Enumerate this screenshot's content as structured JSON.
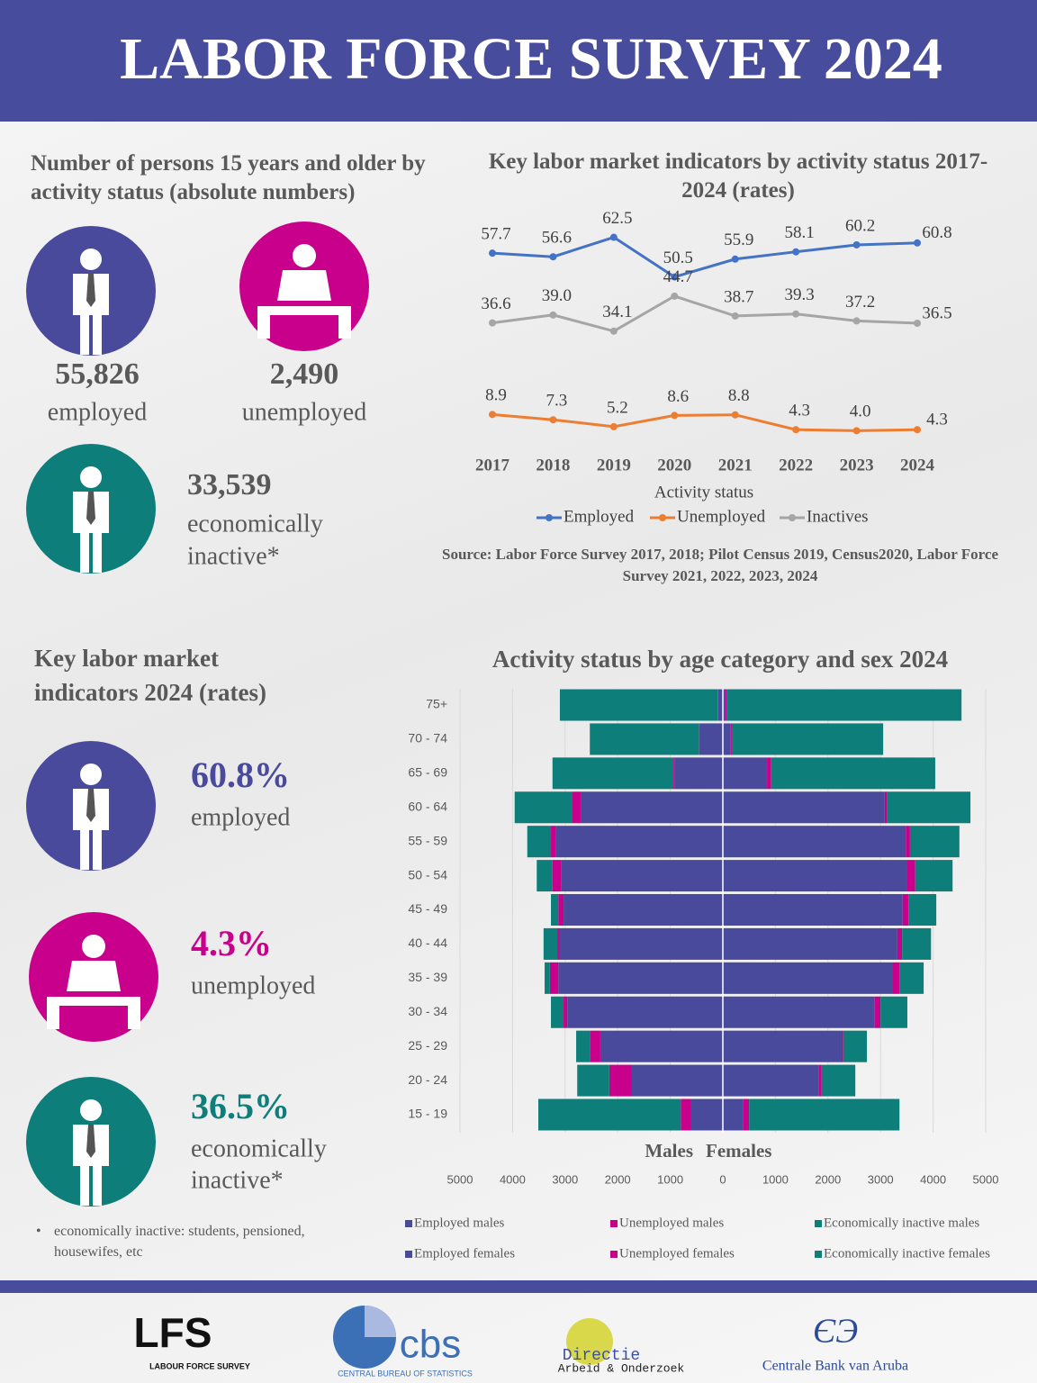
{
  "title": "LABOR FORCE SURVEY 2024",
  "absolute": {
    "heading": "Number of persons 15 years and older by activity status (absolute numbers)",
    "items": [
      {
        "value": "55,826",
        "label": "employed"
      },
      {
        "value": "2,490",
        "label": "unemployed"
      },
      {
        "value": "33,539",
        "label": [
          "economically",
          "inactive*"
        ]
      }
    ]
  },
  "rates": {
    "heading": "Key labor market indicators 2024 (rates)",
    "items": [
      {
        "value": "60.8%",
        "label": [
          "employed"
        ]
      },
      {
        "value": "4.3%",
        "label": [
          "unemployed"
        ]
      },
      {
        "value": "36.5%",
        "label": [
          "economically",
          "inactive*"
        ]
      }
    ],
    "footnote": "economically inactive: students, pensioned,  housewifes, etc"
  },
  "chart_data": [
    {
      "type": "line",
      "title": "Key labor market indicators by activity status 2017-2024 (rates)",
      "x_label": "Activity status",
      "categories": [
        "2017",
        "2018",
        "2019",
        "2020",
        "2021",
        "2022",
        "2023",
        "2024"
      ],
      "ylim": [
        0,
        70
      ],
      "legend": "bottom",
      "series": [
        {
          "name": "Employed",
          "color": "#4472c4",
          "values": [
            57.7,
            56.6,
            62.5,
            50.5,
            55.9,
            58.1,
            60.2,
            60.8
          ],
          "value_labels": [
            "57.7",
            "56.6",
            "62.5",
            "50.5",
            "55.9",
            "58.1",
            "60.2",
            "60.8"
          ]
        },
        {
          "name": "Unemployed",
          "color": "#ed7d31",
          "values": [
            8.9,
            7.3,
            5.2,
            8.6,
            8.8,
            4.3,
            4.0,
            4.3
          ],
          "value_labels": [
            "8.9",
            "7.3",
            "5.2",
            "8.6",
            "8.8",
            "4.3",
            "4.0",
            "4.3"
          ]
        },
        {
          "name": "Inactives",
          "color": "#a5a5a5",
          "values": [
            36.6,
            39.0,
            34.1,
            44.7,
            38.7,
            39.3,
            37.2,
            36.5
          ],
          "value_labels": [
            "36.6",
            "39.0",
            "34.1",
            "44.7",
            "38.7",
            "39.3",
            "37.2",
            "36.5"
          ]
        }
      ],
      "source": "Source: Labor Force Survey 2017, 2018; Pilot Census 2019, Census2020, Labor Force Survey 2021, 2022, 2023, 2024"
    },
    {
      "type": "pyramid",
      "title": "Activity status by age category and sex 2024",
      "categories": [
        "15 - 19",
        "20 - 24",
        "25 - 29",
        "30 - 34",
        "35 - 39",
        "40 - 44",
        "45 - 49",
        "50 - 54",
        "55 - 59",
        "60 - 64",
        "65 - 69",
        "70 - 74",
        "75+"
      ],
      "xlim": [
        -5000,
        5000
      ],
      "xticks": [
        {
          "value": -5000,
          "label": "5000"
        },
        {
          "value": -4000,
          "label": "4000"
        },
        {
          "value": -3000,
          "label": "3000"
        },
        {
          "value": -2000,
          "label": "2000"
        },
        {
          "value": -1000,
          "label": "1000"
        },
        0,
        1000,
        2000,
        3000,
        4000,
        5000
      ],
      "grid": true,
      "side_labels": [
        "Males",
        "Females"
      ],
      "legend": "bottom",
      "series": [
        {
          "name": "Employed males",
          "side": "left",
          "color": "#4a4a9c",
          "values": [
            600,
            1730,
            2330,
            2960,
            3130,
            3100,
            3030,
            3070,
            3170,
            2690,
            910,
            430,
            90
          ]
        },
        {
          "name": "Unemployed males",
          "side": "left",
          "color": "#c8008c",
          "values": [
            200,
            430,
            200,
            70,
            160,
            50,
            100,
            170,
            100,
            170,
            30,
            20,
            10
          ]
        },
        {
          "name": "Economically inactive males",
          "side": "left",
          "color": "#0d7e7a",
          "values": [
            2710,
            610,
            260,
            240,
            100,
            260,
            140,
            300,
            450,
            1100,
            2300,
            2080,
            3000
          ]
        },
        {
          "name": "Employed females",
          "side": "right",
          "color": "#4a4a9c",
          "values": [
            380,
            1830,
            2260,
            2890,
            3220,
            3320,
            3420,
            3510,
            3480,
            3080,
            840,
            150,
            50
          ]
        },
        {
          "name": "Unemployed females",
          "side": "right",
          "color": "#c8008c",
          "values": [
            120,
            50,
            30,
            110,
            140,
            90,
            110,
            150,
            80,
            50,
            80,
            20,
            20
          ]
        },
        {
          "name": "Economically inactive females",
          "side": "right",
          "color": "#0d7e7a",
          "values": [
            2860,
            640,
            450,
            510,
            460,
            550,
            530,
            710,
            940,
            1580,
            3120,
            2880,
            4470
          ]
        }
      ]
    }
  ],
  "logos": [
    {
      "name": "LFS",
      "sub": "LABOUR   FORCE   SURVEY"
    },
    {
      "name": "cbs",
      "sub": "CENTRAL BUREAU OF STATISTICS"
    },
    {
      "name": "Directie",
      "sub": "Arbeid & Onderzoek"
    },
    {
      "name": "Centrale Bank van Aruba"
    }
  ]
}
